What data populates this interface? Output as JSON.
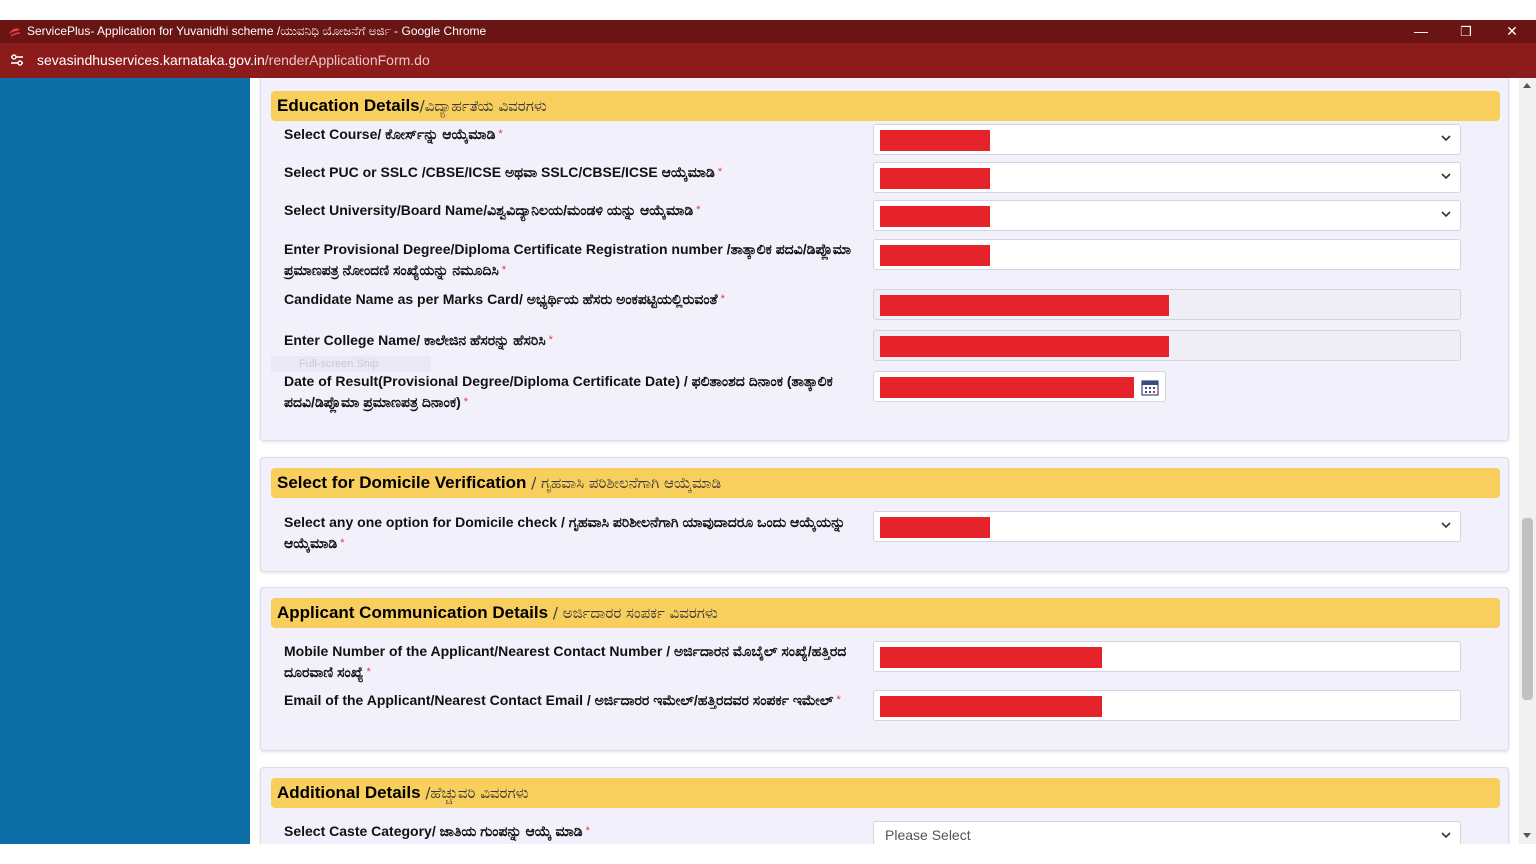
{
  "window": {
    "title": "ServicePlus- Application for Yuvanidhi scheme /ಯುವನಿಧಿ ಯೋಜನೆಗೆ ಅರ್ಜಿ - Google Chrome",
    "minimize": "—",
    "restore": "❐",
    "close": "✕"
  },
  "address": {
    "host": "sevasindhuservices.karnataka.gov.in",
    "path": "/renderApplicationForm.do"
  },
  "colors": {
    "titlebar": "#6b1414",
    "addressbar": "#8c1b1b",
    "sidebar": "#0d6ea6",
    "section_header": "#f8ce5c",
    "redaction": "#e6232a"
  },
  "ghost_text": "Full-screen Snip",
  "sections": {
    "education": {
      "title_en": "Education Details",
      "title_kn": "/ವಿದ್ಯಾರ್ಹತೆಯ ವಿವರಗಳು",
      "fields": [
        {
          "label": "Select Course/ ಕೋರ್ಸ್‌ನ್ನು ಆಯ್ಕೆಮಾಡಿ",
          "type": "select"
        },
        {
          "label": "Select PUC or SSLC /CBSE/ICSE ಅಥವಾ SSLC/CBSE/ICSE ಆಯ್ಕೆಮಾಡಿ",
          "type": "select"
        },
        {
          "label": "Select University/Board Name/ವಿಶ್ವವಿದ್ಯಾನಿಲಯ/ಮಂಡಳಿ ಯನ್ನು ಆಯ್ಕೆಮಾಡಿ",
          "type": "select"
        },
        {
          "label": "Enter Provisional Degree/Diploma Certificate Registration number /ತಾತ್ಕಾಲಿಕ ಪದವಿ/ಡಿಪ್ಲೊಮಾ ಪ್ರಮಾಣಪತ್ರ ನೋಂದಣಿ ಸಂಖ್ಯೆಯನ್ನು ನಮೂದಿಸಿ",
          "type": "text"
        },
        {
          "label": "Candidate Name as per Marks Card/ ಅಭ್ಯರ್ಥಿಯ ಹೆಸರು ಅಂಕಪಟ್ಟಿಯಲ್ಲಿರುವಂತೆ",
          "type": "readonly"
        },
        {
          "label": "Enter College Name/ ಕಾಲೇಜಿನ ಹೆಸರನ್ನು ಹೆಸರಿಸಿ",
          "type": "readonly"
        },
        {
          "label": "Date of Result(Provisional Degree/Diploma Certificate Date) / ಫಲಿತಾಂಶದ ದಿನಾಂಕ (ತಾತ್ಕಾಲಿಕ ಪದವಿ/ಡಿಪ್ಲೊಮಾ ಪ್ರಮಾಣಪತ್ರ ದಿನಾಂಕ)",
          "type": "date"
        }
      ]
    },
    "domicile": {
      "title_en": "Select for Domicile Verification",
      "title_kn": " / ಗೃಹವಾಸಿ ಪರಿಶೀಲನೆಗಾಗಿ ಆಯ್ಕೆಮಾಡಿ",
      "fields": [
        {
          "label": "Select any one option for Domicile check / ಗೃಹವಾಸಿ ಪರಿಶೀಲನೆಗಾಗಿ ಯಾವುದಾದರೂ ಒಂದು ಆಯ್ಕೆಯನ್ನು ಆಯ್ಕೆಮಾಡಿ",
          "type": "select"
        }
      ]
    },
    "communication": {
      "title_en": "Applicant Communication Details",
      "title_kn": " / ಅರ್ಜಿದಾರರ ಸಂಪರ್ಕ ವಿವರಗಳು",
      "fields": [
        {
          "label": "Mobile Number of the Applicant/Nearest Contact Number / ಅರ್ಜಿದಾರನ ಮೊಬೈಲ್ ಸಂಖ್ಯೆ/ಹತ್ತಿರದ ದೂರವಾಣಿ ಸಂಖ್ಯೆ",
          "type": "text"
        },
        {
          "label": "Email of the Applicant/Nearest Contact Email / ಅರ್ಜಿದಾರರ ಇಮೇಲ್/ಹತ್ತಿರದವರ ಸಂಪರ್ಕ ಇಮೇಲ್",
          "type": "text"
        }
      ]
    },
    "additional": {
      "title_en": "Additional Details",
      "title_kn": " /ಹೆಚ್ಚುವರಿ ವಿವರಗಳು",
      "fields": [
        {
          "label": "Select Caste Category/ ಜಾತಿಯ ಗುಂಪನ್ನು ಆಯ್ಕೆ ಮಾಡಿ",
          "type": "select",
          "value": "Please Select"
        }
      ]
    }
  }
}
